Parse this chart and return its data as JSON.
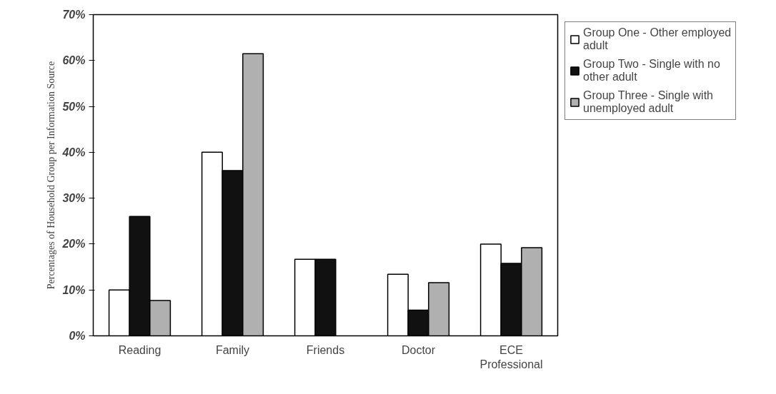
{
  "chart_data": {
    "type": "bar",
    "ylabel": "Percentages of Household Group per Information Source",
    "categories": [
      "Reading",
      "Family",
      "Friends",
      "Doctor",
      "ECE Professional"
    ],
    "series": [
      {
        "name": "Group One - Other employed adult",
        "color": "#ffffff",
        "values": [
          10,
          40,
          16.7,
          13.4,
          20
        ]
      },
      {
        "name": "Group Two - Single with no other adult",
        "color": "#111111",
        "values": [
          26,
          36,
          16.7,
          5.6,
          15.8
        ]
      },
      {
        "name": "Group Three - Single with unemployed adult",
        "color": "#b0b0b0",
        "values": [
          7.7,
          61.5,
          null,
          11.6,
          19.2
        ]
      }
    ],
    "ylim": [
      0,
      70
    ],
    "yticks": [
      {
        "value": 0,
        "label": "0%"
      },
      {
        "value": 10,
        "label": "10%"
      },
      {
        "value": 20,
        "label": "20%"
      },
      {
        "value": 30,
        "label": "30%"
      },
      {
        "value": 40,
        "label": "40%"
      },
      {
        "value": 50,
        "label": "50%"
      },
      {
        "value": 60,
        "label": "60%"
      },
      {
        "value": 70,
        "label": "70%"
      }
    ],
    "grid": false,
    "legend": "right"
  }
}
